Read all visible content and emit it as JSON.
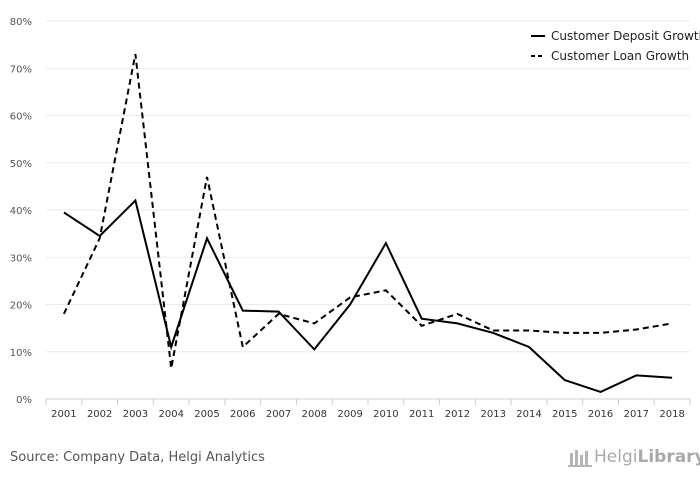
{
  "chart_data": {
    "type": "line",
    "title": "",
    "xlabel": "",
    "ylabel": "",
    "ylim": [
      0,
      80
    ],
    "y_ticks": [
      "0%",
      "10%",
      "20%",
      "30%",
      "40%",
      "50%",
      "60%",
      "70%",
      "80%"
    ],
    "categories": [
      "2001",
      "2002",
      "2003",
      "2004",
      "2005",
      "2006",
      "2007",
      "2008",
      "2009",
      "2010",
      "2011",
      "2012",
      "2013",
      "2014",
      "2015",
      "2016",
      "2017",
      "2018"
    ],
    "series": [
      {
        "name": "Customer Deposit Growth",
        "style": "solid",
        "color": "#000000",
        "values": [
          39.5,
          34.5,
          42,
          11,
          34,
          18.7,
          18.5,
          10.5,
          20,
          33,
          17,
          16,
          14,
          11,
          4,
          1.5,
          5,
          4.5
        ]
      },
      {
        "name": "Customer Loan Growth",
        "style": "dashed",
        "color": "#000000",
        "values": [
          18,
          34,
          73,
          6.5,
          47,
          11,
          18,
          16,
          21.5,
          23,
          15.5,
          18,
          14.5,
          14.5,
          14,
          14,
          14.7,
          16
        ]
      }
    ],
    "legend": "top-right",
    "grid": true
  },
  "footer": {
    "source": "Source: Company Data, Helgi Analytics",
    "logo_regular": "Helgi",
    "logo_bold": "Library"
  }
}
